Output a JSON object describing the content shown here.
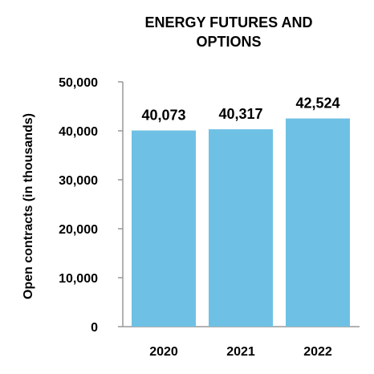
{
  "chart_data": {
    "type": "bar",
    "title_lines": [
      "ENERGY FUTURES AND",
      "OPTIONS"
    ],
    "ylabel": "Open contracts (in thousands)",
    "xlabel": "",
    "categories": [
      "2020",
      "2021",
      "2022"
    ],
    "values": [
      40073,
      40317,
      42524
    ],
    "value_labels": [
      "40,073",
      "40,317",
      "42,524"
    ],
    "yticks": [
      0,
      10000,
      20000,
      30000,
      40000,
      50000
    ],
    "ytick_labels": [
      "0",
      "10,000",
      "20,000",
      "30,000",
      "40,000",
      "50,000"
    ],
    "ylim": [
      0,
      50000
    ],
    "grid": false,
    "bar_color": "#6EC1E4",
    "axis_color": "#999999"
  }
}
